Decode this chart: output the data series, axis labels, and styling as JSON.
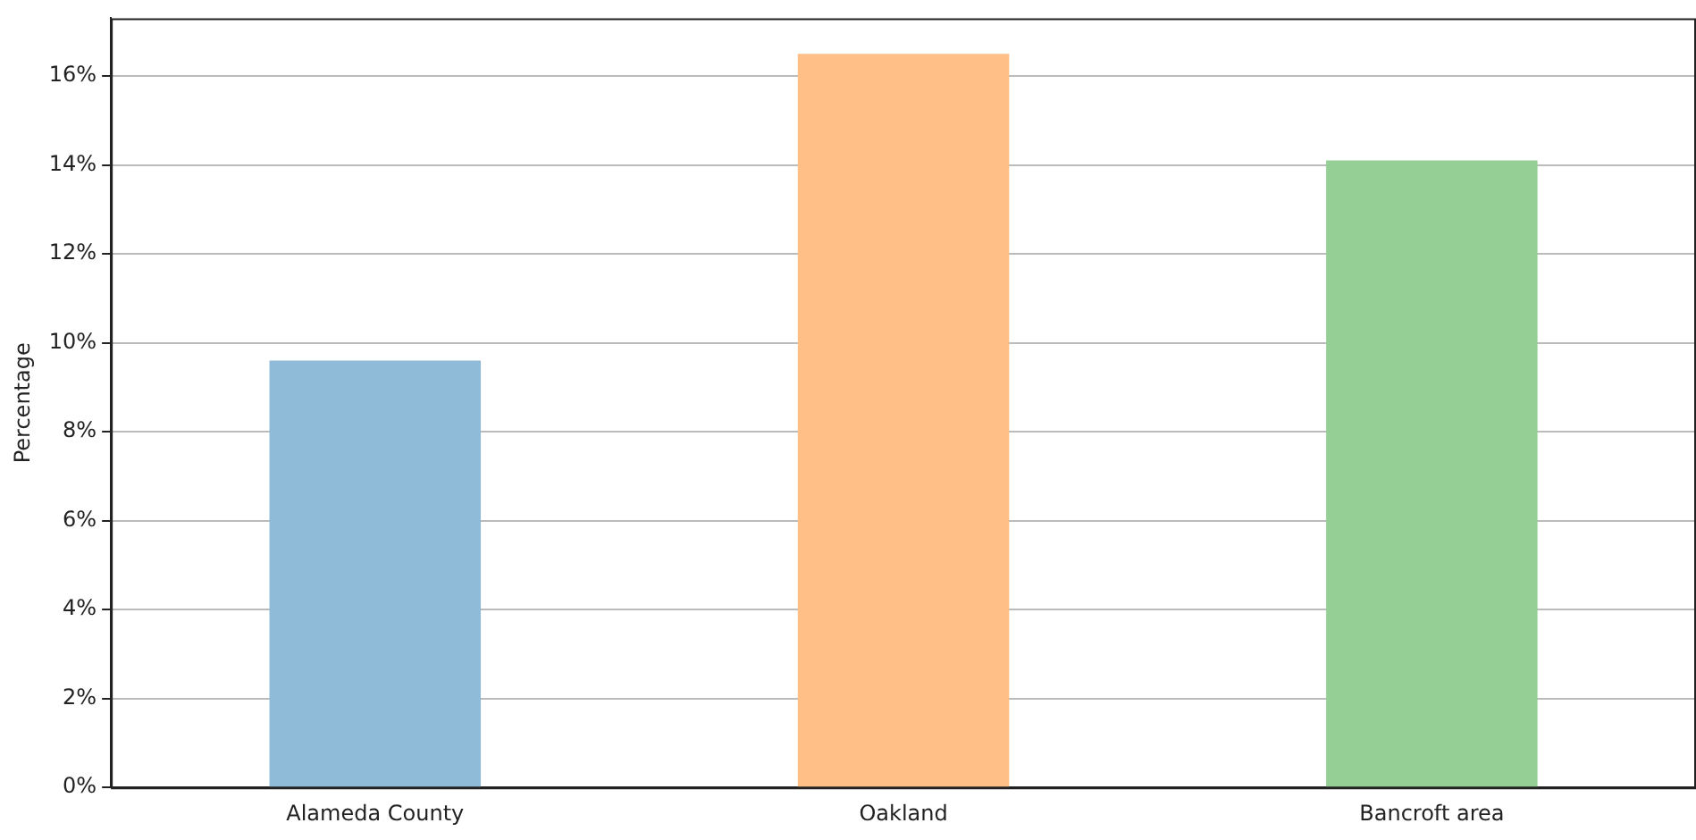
{
  "chart_data": {
    "type": "bar",
    "ylabel": "Percentage",
    "categories": [
      "Alameda County",
      "Oakland",
      "Bancroft area"
    ],
    "values": [
      9.6,
      16.5,
      14.1
    ],
    "colors": [
      "#8fbbd9",
      "#ffbf86",
      "#95cf95"
    ],
    "ylim": [
      0,
      17.3
    ],
    "yticks": [
      {
        "value": 0,
        "label": "0%"
      },
      {
        "value": 2,
        "label": "2%"
      },
      {
        "value": 4,
        "label": "4%"
      },
      {
        "value": 6,
        "label": "6%"
      },
      {
        "value": 8,
        "label": "8%"
      },
      {
        "value": 10,
        "label": "10%"
      },
      {
        "value": 12,
        "label": "12%"
      },
      {
        "value": 14,
        "label": "14%"
      },
      {
        "value": 16,
        "label": "16%"
      }
    ],
    "grid": "y",
    "legend": false
  }
}
